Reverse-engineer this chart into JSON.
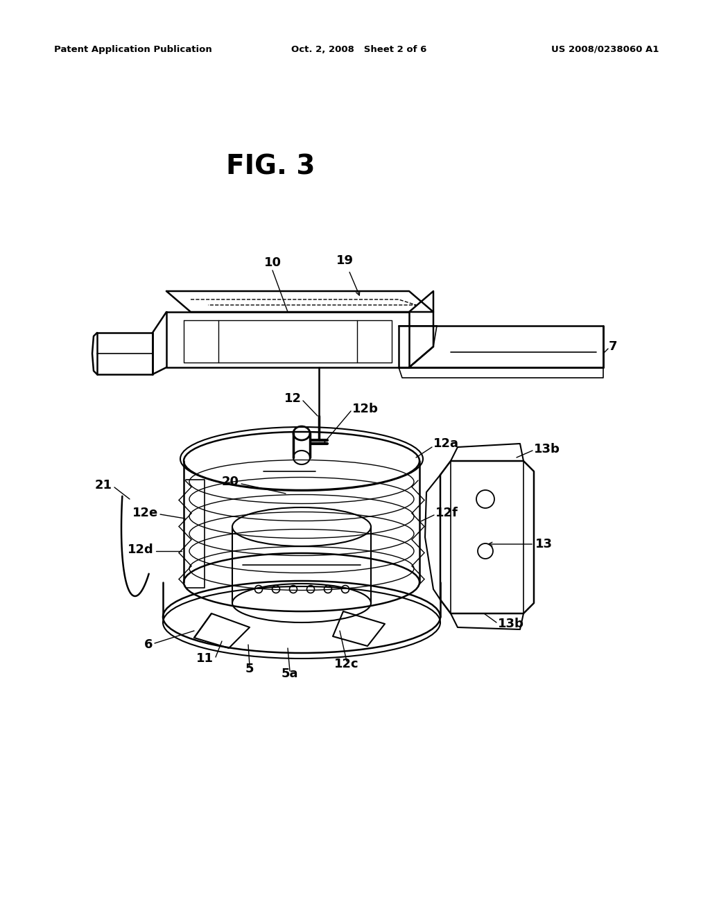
{
  "header_left": "Patent Application Publication",
  "header_center": "Oct. 2, 2008   Sheet 2 of 6",
  "header_right": "US 2008/0238060 A1",
  "title": "FIG. 3",
  "bg_color": "#ffffff"
}
